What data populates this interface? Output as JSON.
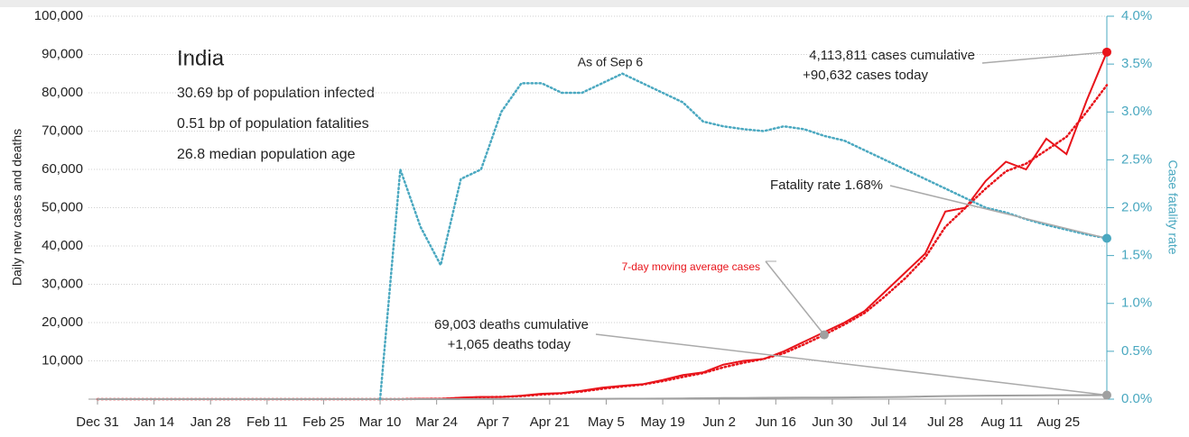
{
  "chart_data": {
    "type": "line",
    "x": [
      0,
      5,
      10,
      15,
      20,
      25,
      30,
      35,
      40,
      45,
      50,
      55,
      60,
      65,
      70,
      75,
      80,
      85,
      90,
      95,
      100,
      105,
      110,
      115,
      120,
      125,
      130,
      135,
      140,
      145,
      150,
      155,
      160,
      165,
      170,
      175,
      180,
      185,
      190,
      195,
      200,
      205,
      210,
      215,
      220,
      225,
      230,
      235,
      240,
      245,
      250
    ],
    "xlim": [
      0,
      250
    ],
    "xticks": [
      {
        "value": 0,
        "label": "Dec 31"
      },
      {
        "value": 14,
        "label": "Jan 14"
      },
      {
        "value": 28,
        "label": "Jan 28"
      },
      {
        "value": 42,
        "label": "Feb 11"
      },
      {
        "value": 56,
        "label": "Feb 25"
      },
      {
        "value": 70,
        "label": "Mar 10"
      },
      {
        "value": 84,
        "label": "Mar 24"
      },
      {
        "value": 98,
        "label": "Apr 7"
      },
      {
        "value": 112,
        "label": "Apr 21"
      },
      {
        "value": 126,
        "label": "May 5"
      },
      {
        "value": 140,
        "label": "May 19"
      },
      {
        "value": 154,
        "label": "Jun 2"
      },
      {
        "value": 168,
        "label": "Jun 16"
      },
      {
        "value": 182,
        "label": "Jun 30"
      },
      {
        "value": 196,
        "label": "Jul 14"
      },
      {
        "value": 210,
        "label": "Jul 28"
      },
      {
        "value": 224,
        "label": "Aug 11"
      },
      {
        "value": 238,
        "label": "Aug 25"
      }
    ],
    "ylim": [
      0,
      100000
    ],
    "yticks": [
      {
        "value": 10000,
        "label": "10,000"
      },
      {
        "value": 20000,
        "label": "20,000"
      },
      {
        "value": 30000,
        "label": "30,000"
      },
      {
        "value": 40000,
        "label": "40,000"
      },
      {
        "value": 50000,
        "label": "50,000"
      },
      {
        "value": 60000,
        "label": "60,000"
      },
      {
        "value": 70000,
        "label": "70,000"
      },
      {
        "value": 80000,
        "label": "80,000"
      },
      {
        "value": 90000,
        "label": "90,000"
      },
      {
        "value": 100000,
        "label": "100,000"
      }
    ],
    "y2lim": [
      0,
      4
    ],
    "y2ticks": [
      {
        "value": 0,
        "label": "0.0%"
      },
      {
        "value": 0.5,
        "label": "0.5%"
      },
      {
        "value": 1,
        "label": "1.0%"
      },
      {
        "value": 1.5,
        "label": "1.5%"
      },
      {
        "value": 2,
        "label": "2.0%"
      },
      {
        "value": 2.5,
        "label": "2.5%"
      },
      {
        "value": 3,
        "label": "3.0%"
      },
      {
        "value": 3.5,
        "label": "3.5%"
      },
      {
        "value": 4,
        "label": "4.0%"
      }
    ],
    "ylabel": "Daily new cases and deaths",
    "y2label": "Case fatality rate",
    "grid": true,
    "series": [
      {
        "color": "#e8141b",
        "style": "solid",
        "values": [
          0,
          0,
          0,
          0,
          0,
          0,
          0,
          0,
          0,
          0,
          0,
          0,
          0,
          0,
          0,
          10,
          80,
          100,
          400,
          600,
          550,
          900,
          1400,
          1600,
          2200,
          3000,
          3500,
          3900,
          5000,
          6300,
          7000,
          9000,
          10000,
          10500,
          12500,
          15000,
          17500,
          20000,
          23000,
          28000,
          33000,
          38000,
          49000,
          50000,
          57000,
          62000,
          60000,
          68000,
          64000,
          78000,
          90632
        ]
      },
      {
        "name": "7-day moving average cases",
        "color": "#e8141b",
        "style": "dotted",
        "values": [
          0,
          0,
          0,
          0,
          0,
          0,
          0,
          0,
          0,
          0,
          0,
          0,
          0,
          0,
          0,
          5,
          60,
          90,
          300,
          500,
          600,
          800,
          1200,
          1500,
          2000,
          2700,
          3300,
          3800,
          4700,
          5800,
          6800,
          8300,
          9500,
          10500,
          12000,
          14300,
          16800,
          19500,
          22500,
          26800,
          31500,
          37000,
          45000,
          50000,
          55000,
          59500,
          61500,
          65000,
          68500,
          75000,
          82000
        ]
      },
      {
        "color": "#a0a0a0",
        "style": "solid",
        "values": [
          0,
          0,
          0,
          0,
          0,
          0,
          0,
          0,
          0,
          0,
          0,
          0,
          0,
          0,
          0,
          0,
          0,
          3,
          15,
          30,
          40,
          50,
          55,
          70,
          80,
          100,
          110,
          130,
          140,
          180,
          230,
          280,
          300,
          340,
          380,
          410,
          420,
          450,
          490,
          540,
          600,
          700,
          780,
          850,
          900,
          950,
          970,
          1010,
          1020,
          1040,
          1065
        ]
      },
      {
        "color": "#4aa8c0",
        "style": "dotted",
        "axis": "y2",
        "values": [
          null,
          null,
          null,
          null,
          null,
          null,
          null,
          null,
          null,
          null,
          null,
          null,
          null,
          null,
          0,
          2.4,
          1.8,
          1.4,
          2.3,
          2.4,
          3.0,
          3.3,
          3.3,
          3.2,
          3.2,
          3.3,
          3.4,
          3.3,
          3.2,
          3.1,
          2.9,
          2.85,
          2.82,
          2.8,
          2.85,
          2.82,
          2.75,
          2.7,
          2.6,
          2.5,
          2.4,
          2.3,
          2.2,
          2.1,
          2.0,
          1.95,
          1.88,
          1.82,
          1.77,
          1.72,
          1.68
        ]
      }
    ],
    "annotations": {
      "country": "India",
      "stats": [
        "30.69 bp of population infected",
        "0.51 bp of population fatalities",
        "26.8 median population age"
      ],
      "as_of": "As of Sep 6",
      "cases": [
        "4,113,811 cases cumulative",
        "+90,632 cases today"
      ],
      "fatality": "Fatality rate 1.68%",
      "deaths": [
        "69,003 deaths cumulative",
        "+1,065 deaths today"
      ]
    }
  }
}
